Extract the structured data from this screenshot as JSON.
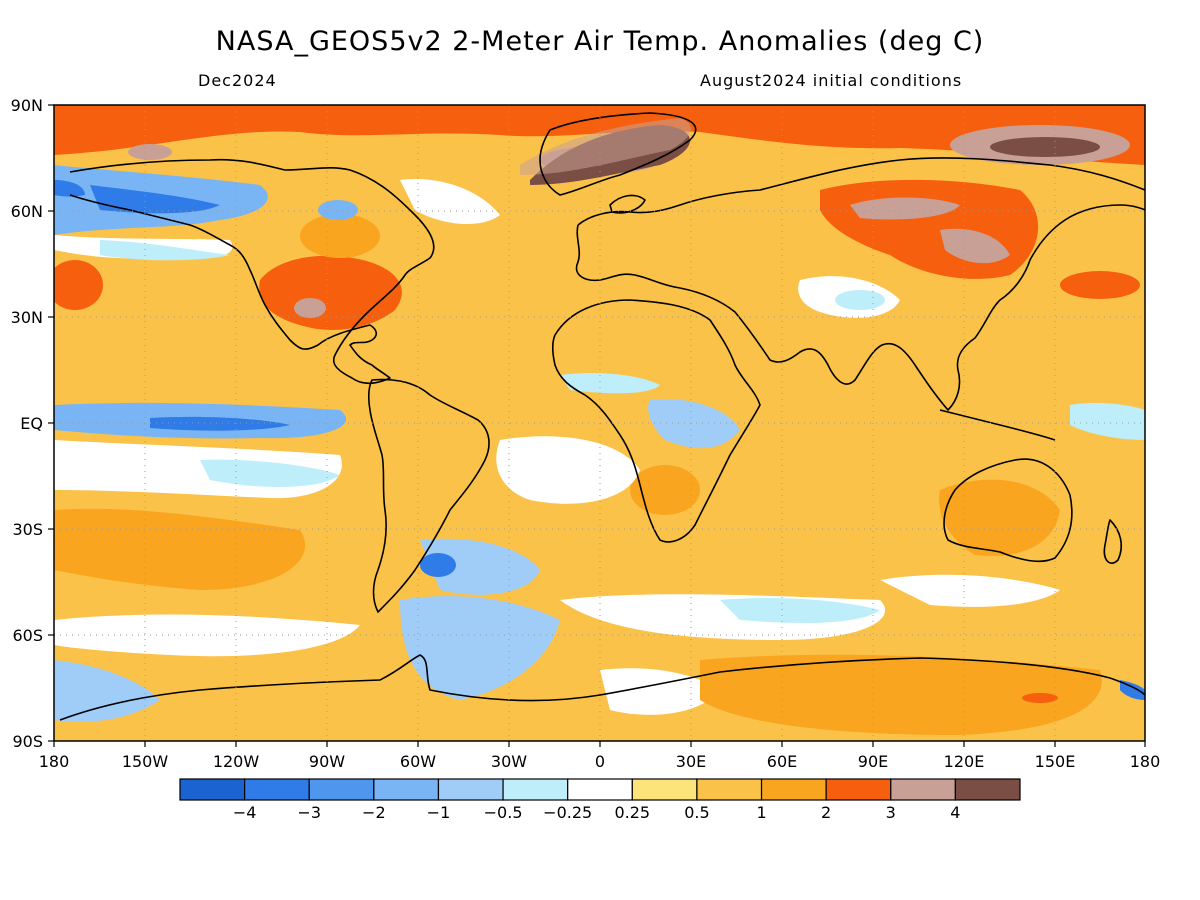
{
  "header": {
    "title": "NASA_GEOS5v2 2-Meter Air Temp. Anomalies (deg C)",
    "month": "Dec2024",
    "initial_conditions": "August2024 initial conditions"
  },
  "map": {
    "projection": "equirectangular",
    "lon_range": [
      -180,
      180
    ],
    "lat_range": [
      -90,
      90
    ],
    "grid": "dotted",
    "lat_labels": [
      "90N",
      "60N",
      "30N",
      "EQ",
      "30S",
      "60S",
      "90S"
    ],
    "lon_labels": [
      "180",
      "150W",
      "120W",
      "90W",
      "60W",
      "30W",
      "0",
      "30E",
      "60E",
      "90E",
      "120E",
      "150E",
      "180"
    ]
  },
  "colorbar": {
    "units": "deg C",
    "colors": [
      "#1a63d0",
      "#2f7ce8",
      "#4f97ee",
      "#79b4f4",
      "#9fcdf8",
      "#bdeefa",
      "#ffffff",
      "#fde47a",
      "#fbc24a",
      "#f9a51f",
      "#f55f0e",
      "#c9a096",
      "#7a4e44"
    ],
    "tick_labels": [
      "-4",
      "-3",
      "-2",
      "-1",
      "-0.5",
      "-0.25",
      "0.25",
      "0.5",
      "1",
      "2",
      "3",
      "4"
    ]
  }
}
